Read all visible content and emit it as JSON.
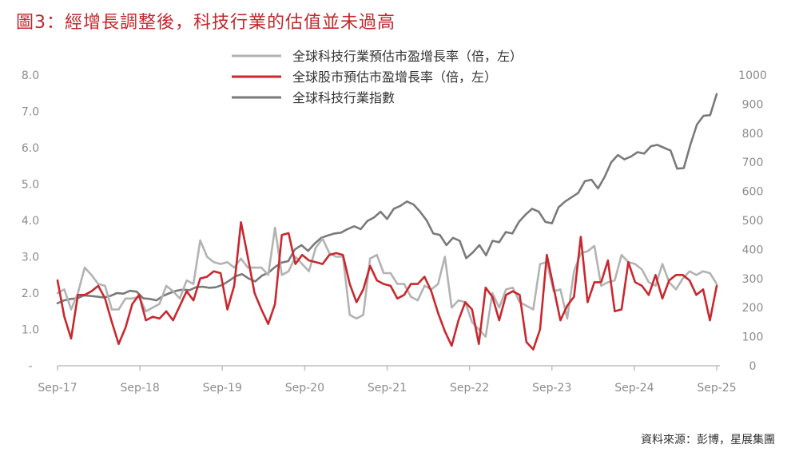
{
  "title": "圖3：經增長調整後，科技行業的估值並未過高",
  "source": "資料來源：彭博，星展集團",
  "chart_data": {
    "type": "line",
    "x_tick_labels": [
      "Sep-17",
      "Sep-18",
      "Sep-19",
      "Sep-20",
      "Sep-21",
      "Sep-22",
      "Sep-23",
      "Sep-24",
      "Sep-25"
    ],
    "left_axis": {
      "ticks": [
        "-",
        "1.0",
        "2.0",
        "3.0",
        "4.0",
        "5.0",
        "6.0",
        "7.0",
        "8.0"
      ],
      "ylim": [
        0,
        8
      ]
    },
    "right_axis": {
      "ticks": [
        "0",
        "100",
        "200",
        "300",
        "400",
        "500",
        "600",
        "700",
        "800",
        "900",
        "1000"
      ],
      "ylim": [
        0,
        1000
      ]
    },
    "x_range": [
      0,
      96
    ],
    "series": [
      {
        "name": "全球科技行業預估市盈增長率（倍，左）",
        "axis": "left",
        "color": "#b3b3b3",
        "values": [
          2.0,
          2.1,
          1.55,
          2.0,
          2.7,
          2.5,
          2.25,
          2.2,
          1.55,
          1.55,
          1.85,
          1.85,
          1.9,
          1.5,
          1.6,
          1.7,
          2.2,
          2.05,
          1.85,
          2.35,
          2.25,
          3.45,
          3.0,
          2.85,
          2.8,
          2.85,
          2.7,
          2.95,
          2.7,
          2.7,
          2.7,
          2.5,
          3.8,
          2.5,
          2.6,
          3.0,
          2.8,
          2.6,
          3.25,
          3.5,
          3.1,
          3.0,
          3.0,
          1.4,
          1.3,
          1.4,
          2.95,
          3.05,
          2.55,
          2.55,
          2.25,
          2.25,
          1.9,
          1.8,
          2.2,
          2.1,
          2.25,
          3.0,
          1.6,
          1.8,
          1.75,
          1.2,
          1.0,
          0.8,
          2.0,
          1.6,
          2.1,
          2.15,
          1.75,
          1.65,
          1.55,
          2.8,
          2.85,
          2.05,
          2.1,
          1.3,
          2.6,
          3.1,
          3.15,
          3.3,
          2.2,
          2.3,
          2.35,
          3.05,
          2.85,
          2.8,
          2.65,
          2.3,
          2.2,
          2.8,
          2.3,
          2.1,
          2.4,
          2.6,
          2.5,
          2.6,
          2.55,
          2.25
        ],
        "x_start": 0
      },
      {
        "name": "全球股市預估市盈增長率（倍，左）",
        "axis": "left",
        "color": "#c8282e",
        "values": [
          2.35,
          1.35,
          0.75,
          1.95,
          1.95,
          2.05,
          2.2,
          1.85,
          1.2,
          0.6,
          1.05,
          1.7,
          1.95,
          1.25,
          1.35,
          1.3,
          1.5,
          1.25,
          1.65,
          2.05,
          1.8,
          2.4,
          2.45,
          2.6,
          2.55,
          1.55,
          2.2,
          3.95,
          3.0,
          2.0,
          1.55,
          1.15,
          1.7,
          3.6,
          3.65,
          2.8,
          3.05,
          2.9,
          2.85,
          2.8,
          3.05,
          3.1,
          3.05,
          2.25,
          1.75,
          2.1,
          2.75,
          2.35,
          2.25,
          2.2,
          1.85,
          1.95,
          2.25,
          2.25,
          2.45,
          2.05,
          1.45,
          0.95,
          0.55,
          1.25,
          1.75,
          1.55,
          0.6,
          2.15,
          1.9,
          1.25,
          1.95,
          2.05,
          1.95,
          0.65,
          0.45,
          1.0,
          3.05,
          2.15,
          1.25,
          1.65,
          1.9,
          3.55,
          1.75,
          2.3,
          2.3,
          2.9,
          1.5,
          1.55,
          2.85,
          2.3,
          2.2,
          1.95,
          2.5,
          1.85,
          2.35,
          2.5,
          2.5,
          2.35,
          1.95,
          2.1,
          1.25,
          2.2
        ]
      },
      {
        "name": "全球科技行業指數",
        "axis": "right",
        "color": "#7a7a7a",
        "values": [
          215,
          225,
          230,
          232,
          242,
          240,
          238,
          235,
          240,
          250,
          248,
          258,
          255,
          232,
          230,
          225,
          240,
          250,
          258,
          262,
          260,
          270,
          272,
          268,
          270,
          278,
          292,
          308,
          315,
          300,
          290,
          310,
          320,
          340,
          355,
          360,
          400,
          415,
          395,
          420,
          440,
          448,
          455,
          458,
          470,
          480,
          470,
          498,
          510,
          530,
          505,
          540,
          550,
          565,
          555,
          530,
          500,
          455,
          450,
          415,
          440,
          430,
          370,
          390,
          415,
          380,
          430,
          425,
          460,
          455,
          495,
          520,
          540,
          530,
          495,
          490,
          545,
          565,
          580,
          595,
          635,
          640,
          610,
          650,
          700,
          725,
          710,
          720,
          735,
          730,
          755,
          760,
          750,
          740,
          678,
          680,
          760,
          830,
          860,
          862,
          935
        ]
      }
    ],
    "legend_position": "top-center",
    "grid": false
  }
}
